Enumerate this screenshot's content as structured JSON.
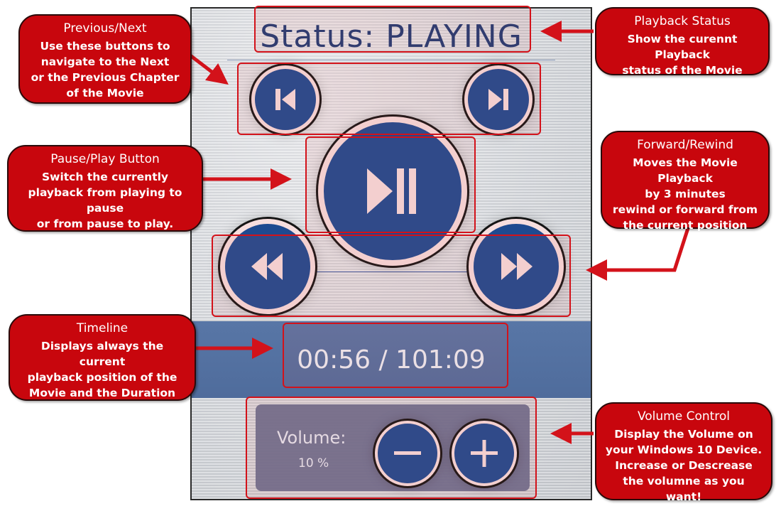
{
  "app": {
    "status": "Status: PLAYING",
    "timeline": "00:56 / 101:09",
    "volume_label": "Volume:",
    "volume_value": "10 %"
  },
  "icons": {
    "previous": "skip-previous-icon",
    "next": "skip-next-icon",
    "play_pause": "play-pause-icon",
    "rewind": "rewind-icon",
    "forward": "fast-forward-icon",
    "minus": "minus-icon",
    "plus": "plus-icon"
  },
  "colors": {
    "accent_red": "#c8060d",
    "button_blue": "#1e4a90",
    "status_text": "#1f3a73",
    "timeline_band": "#5876a6"
  },
  "callouts": {
    "previous_next": {
      "title": "Previous/Next",
      "body": "Use these buttons to\nnavigate to the Next\nor the Previous Chapter\nof the Movie"
    },
    "pause_play": {
      "title": "Pause/Play Button",
      "body": "Switch the currently\nplayback from playing to pause\nor from pause to play."
    },
    "timeline": {
      "title": "Timeline",
      "body": "Displays always the current\nplayback position of the\nMovie and the Duration"
    },
    "playback_status": {
      "title": "Playback Status",
      "body": "Show the curennt Playback\nstatus of the Movie"
    },
    "forward_rewind": {
      "title": "Forward/Rewind",
      "body": "Moves the Movie Playback\nby 3 minutes\nrewind or forward from\nthe current position"
    },
    "volume_control": {
      "title": "Volume Control",
      "body": "Display the Volume on\nyour Windows 10 Device.\nIncrease or Descrease\nthe volumne as you want!"
    }
  }
}
